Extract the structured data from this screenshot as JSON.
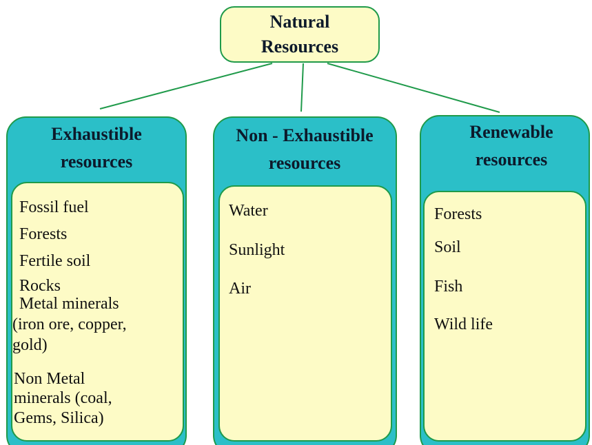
{
  "root": {
    "lines": [
      "Natural",
      "Resources"
    ]
  },
  "columns": [
    {
      "title": [
        "Exhaustible",
        "resources"
      ],
      "items": [
        [
          "Fossil fuel"
        ],
        [
          "Forests"
        ],
        [
          "Fertile soil"
        ],
        [
          "Rocks"
        ],
        [
          "Metal minerals",
          "(iron ore, copper,",
          "gold)"
        ],
        [
          "Non Metal",
          "minerals  (coal,",
          "Gems, Silica)"
        ]
      ]
    },
    {
      "title": [
        "Non - Exhaustible",
        "resources"
      ],
      "items": [
        [
          "Water"
        ],
        [
          "Sunlight"
        ],
        [
          "Air"
        ]
      ]
    },
    {
      "title": [
        "Renewable",
        "resources"
      ],
      "items": [
        [
          "Forests"
        ],
        [
          "Soil"
        ],
        [
          "Fish"
        ],
        [
          "Wild life"
        ]
      ]
    }
  ]
}
